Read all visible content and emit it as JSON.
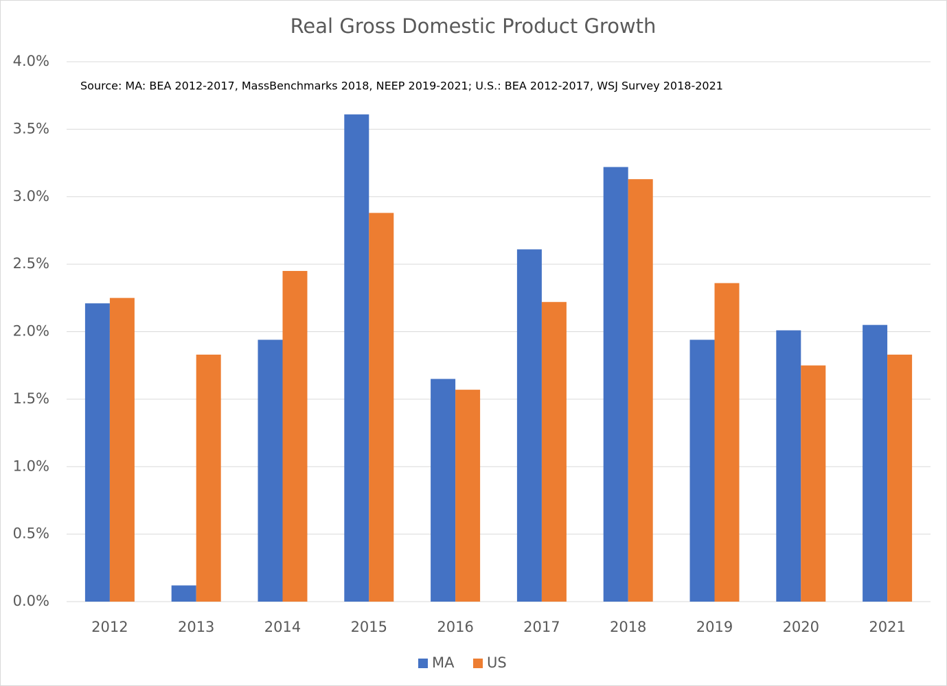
{
  "chart_data": {
    "type": "bar",
    "title": "Real Gross Domestic Product Growth",
    "annotation": "Source: MA: BEA 2012-2017,  MassBenchmarks 2018, NEEP 2019-2021;  U.S.: BEA 2012-2017,  WSJ Survey 2018-2021",
    "categories": [
      "2012",
      "2013",
      "2014",
      "2015",
      "2016",
      "2017",
      "2018",
      "2019",
      "2020",
      "2021"
    ],
    "series": [
      {
        "name": "MA",
        "color": "#4472c4",
        "values": [
          2.21,
          0.12,
          1.94,
          3.61,
          1.65,
          2.61,
          3.22,
          1.94,
          2.01,
          2.05
        ]
      },
      {
        "name": "US",
        "color": "#ed7d31",
        "values": [
          2.25,
          1.83,
          2.45,
          2.88,
          1.57,
          2.22,
          3.13,
          2.36,
          1.75,
          1.83
        ]
      }
    ],
    "ylim": [
      0,
      4
    ],
    "yticks": [
      {
        "value": 0,
        "label": "0.0%"
      },
      {
        "value": 0.5,
        "label": "0.5%"
      },
      {
        "value": 1,
        "label": "1.0%"
      },
      {
        "value": 1.5,
        "label": "1.5%"
      },
      {
        "value": 2,
        "label": "2.0%"
      },
      {
        "value": 2.5,
        "label": "2.5%"
      },
      {
        "value": 3,
        "label": "3.0%"
      },
      {
        "value": 3.5,
        "label": "3.5%"
      },
      {
        "value": 4,
        "label": "4.0%"
      }
    ],
    "grid": true,
    "legend": "bottom"
  }
}
